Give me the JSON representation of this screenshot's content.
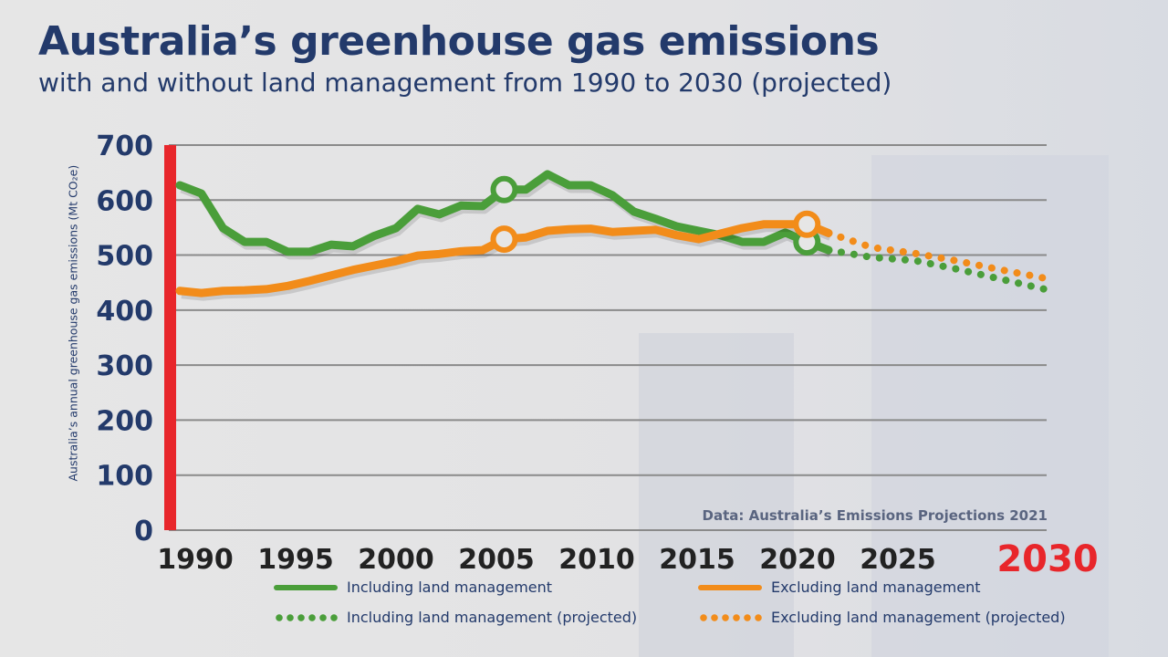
{
  "title": "Australia’s greenhouse gas emissions",
  "subtitle": "with and without land management from 1990 to 2030 (projected)",
  "source": "Data: Australia’s Emissions Projections 2021",
  "chart_data": {
    "type": "line",
    "ylabel": "Australia’s annual greenhouse gas emissions (Mt CO₂e)",
    "ylim": [
      0,
      700
    ],
    "yticks": [
      0,
      100,
      200,
      300,
      400,
      500,
      600,
      700
    ],
    "xlim": [
      1990,
      2030
    ],
    "xticks": [
      1990,
      1995,
      2000,
      2005,
      2010,
      2015,
      2020,
      2025,
      2030
    ],
    "grid": true,
    "legend_placement": "bottom",
    "highlight_points": [
      {
        "series": "Including land management",
        "x": 2005
      },
      {
        "series": "Excluding land management",
        "x": 2005
      },
      {
        "series": "Including land management",
        "x": 2019
      },
      {
        "series": "Excluding land management",
        "x": 2019
      }
    ],
    "series": [
      {
        "name": "Including land management",
        "color": "#4a9e3a",
        "style": "solid",
        "x": [
          1990,
          1991,
          1992,
          1993,
          1994,
          1995,
          1996,
          1997,
          1998,
          1999,
          2000,
          2001,
          2002,
          2003,
          2004,
          2005,
          2006,
          2007,
          2008,
          2009,
          2010,
          2011,
          2012,
          2013,
          2014,
          2015,
          2016,
          2017,
          2018,
          2019,
          2020
        ],
        "y": [
          627,
          612,
          549,
          524,
          524,
          506,
          506,
          519,
          516,
          535,
          549,
          584,
          574,
          590,
          589,
          619,
          619,
          647,
          627,
          627,
          609,
          579,
          566,
          552,
          544,
          536,
          524,
          524,
          541,
          524,
          509
        ]
      },
      {
        "name": "Excluding land management",
        "color": "#f28c1a",
        "style": "solid",
        "x": [
          1990,
          1991,
          1992,
          1993,
          1994,
          1995,
          1996,
          1997,
          1998,
          1999,
          2000,
          2001,
          2002,
          2003,
          2004,
          2005,
          2006,
          2007,
          2008,
          2009,
          2010,
          2011,
          2012,
          2013,
          2014,
          2015,
          2016,
          2017,
          2018,
          2019,
          2020
        ],
        "y": [
          435,
          431,
          435,
          436,
          438,
          444,
          453,
          463,
          473,
          481,
          489,
          499,
          502,
          507,
          509,
          529,
          532,
          544,
          547,
          548,
          542,
          544,
          546,
          536,
          529,
          539,
          549,
          556,
          556,
          556,
          540
        ]
      },
      {
        "name": "Including land management (projected)",
        "color": "#4a9e3a",
        "style": "dotted",
        "x": [
          2020,
          2022,
          2024,
          2026,
          2028,
          2030
        ],
        "y": [
          509,
          496,
          490,
          474,
          456,
          438
        ]
      },
      {
        "name": "Excluding land management (projected)",
        "color": "#f28c1a",
        "style": "dotted",
        "x": [
          2020,
          2022,
          2024,
          2026,
          2028,
          2030
        ],
        "y": [
          540,
          514,
          503,
          489,
          473,
          458
        ]
      }
    ]
  }
}
